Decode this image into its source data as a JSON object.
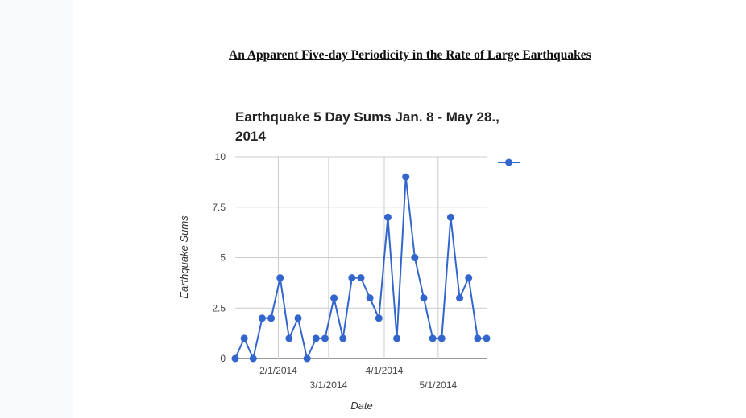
{
  "document": {
    "title": "An Apparent Five-day Periodicity in the Rate of Large Earthquakes"
  },
  "chart_data": {
    "type": "line",
    "title": "Earthquake 5 Day Sums Jan. 8 - May 28., 2014",
    "xlabel": "Date",
    "ylabel": "Earthquake Sums",
    "ylim": [
      0,
      10
    ],
    "yticks": [
      "0",
      "2.5",
      "5",
      "7.5",
      "10"
    ],
    "xlim": [
      "2014-01-08",
      "2014-05-28"
    ],
    "xticks": [
      {
        "date": "2014-02-01",
        "label": "2/1/2014"
      },
      {
        "date": "2014-03-01",
        "label": "3/1/2014"
      },
      {
        "date": "2014-04-01",
        "label": "4/1/2014"
      },
      {
        "date": "2014-05-01",
        "label": "5/1/2014"
      }
    ],
    "grid": true,
    "legend_position": "top-right",
    "series": [
      {
        "color": "#3366cc",
        "points": [
          {
            "x": "2014-01-08",
            "y": 0
          },
          {
            "x": "2014-01-13",
            "y": 1
          },
          {
            "x": "2014-01-18",
            "y": 0
          },
          {
            "x": "2014-01-23",
            "y": 2
          },
          {
            "x": "2014-01-28",
            "y": 2
          },
          {
            "x": "2014-02-02",
            "y": 4
          },
          {
            "x": "2014-02-07",
            "y": 1
          },
          {
            "x": "2014-02-12",
            "y": 2
          },
          {
            "x": "2014-02-17",
            "y": 0
          },
          {
            "x": "2014-02-22",
            "y": 1
          },
          {
            "x": "2014-02-27",
            "y": 1
          },
          {
            "x": "2014-03-04",
            "y": 3
          },
          {
            "x": "2014-03-09",
            "y": 1
          },
          {
            "x": "2014-03-14",
            "y": 4
          },
          {
            "x": "2014-03-19",
            "y": 4
          },
          {
            "x": "2014-03-24",
            "y": 3
          },
          {
            "x": "2014-03-29",
            "y": 2
          },
          {
            "x": "2014-04-03",
            "y": 7
          },
          {
            "x": "2014-04-08",
            "y": 1
          },
          {
            "x": "2014-04-13",
            "y": 9
          },
          {
            "x": "2014-04-18",
            "y": 5
          },
          {
            "x": "2014-04-23",
            "y": 3
          },
          {
            "x": "2014-04-28",
            "y": 1
          },
          {
            "x": "2014-05-03",
            "y": 1
          },
          {
            "x": "2014-05-08",
            "y": 7
          },
          {
            "x": "2014-05-13",
            "y": 3
          },
          {
            "x": "2014-05-18",
            "y": 4
          },
          {
            "x": "2014-05-23",
            "y": 1
          },
          {
            "x": "2014-05-28",
            "y": 1
          }
        ]
      }
    ]
  }
}
